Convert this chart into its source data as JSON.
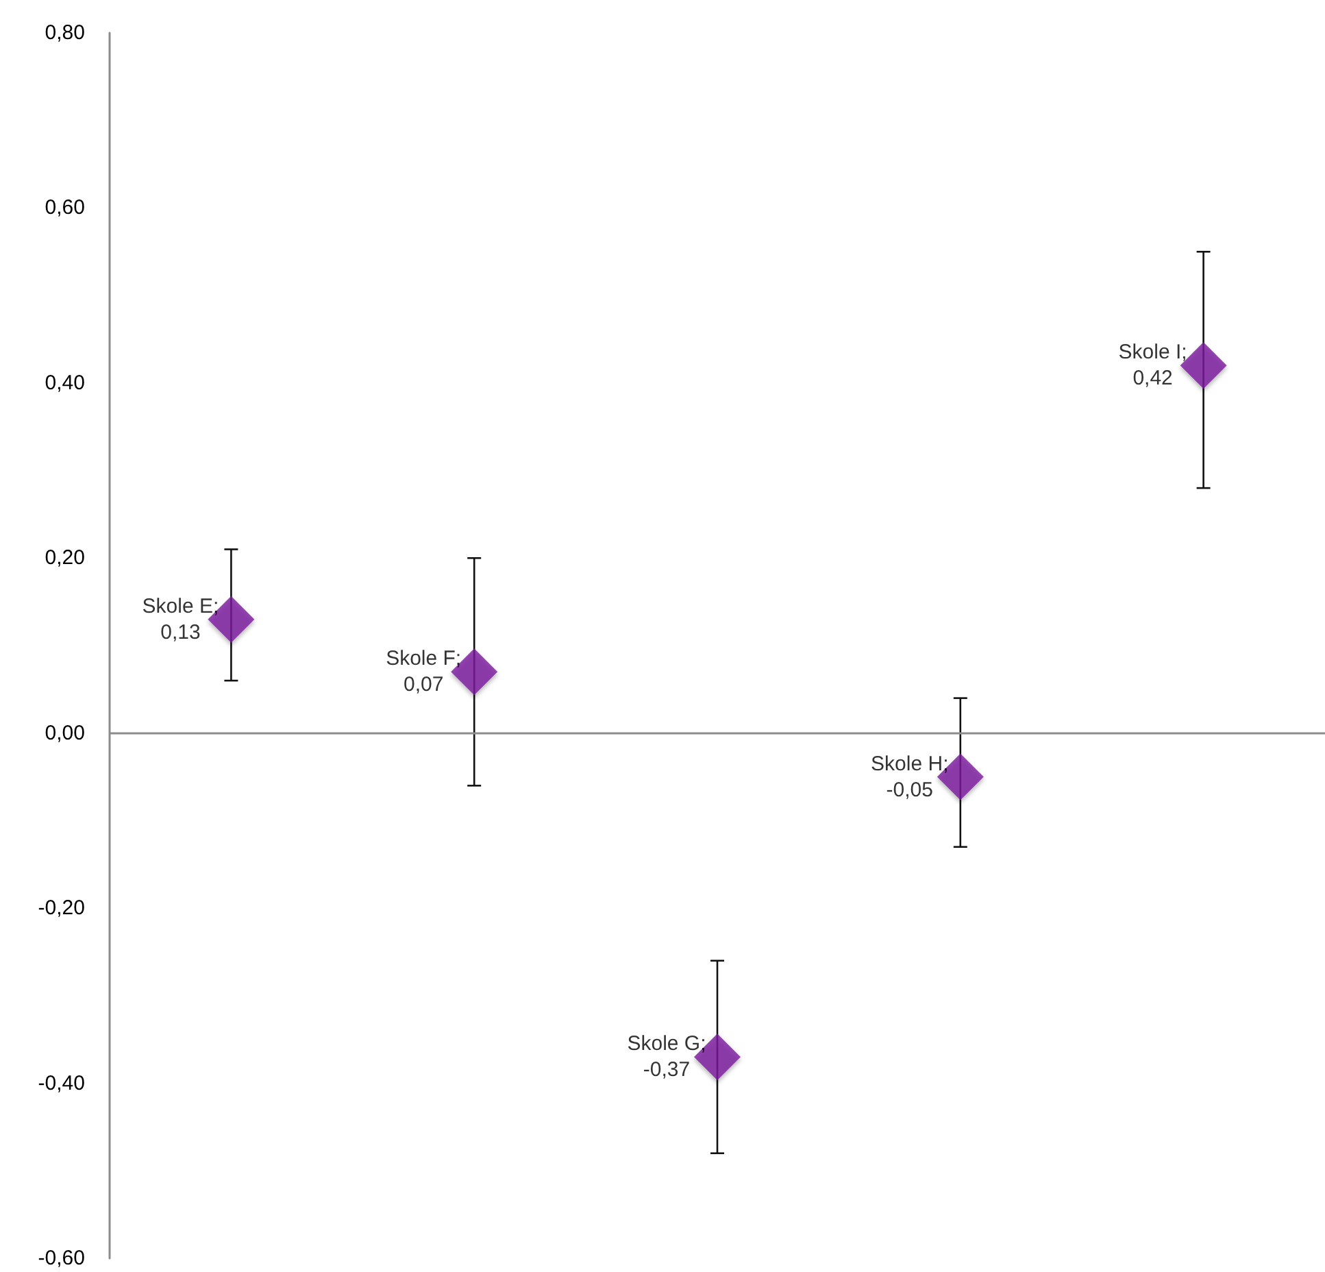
{
  "chart_data": {
    "type": "scatter",
    "categories": [
      null,
      null,
      null,
      null,
      null
    ],
    "values": [
      0.13,
      0.07,
      -0.37,
      -0.05,
      0.42
    ],
    "errors": [
      [
        0.06,
        0.21
      ],
      [
        -0.06,
        0.2
      ],
      [
        -0.48,
        -0.26
      ],
      [
        -0.13,
        0.04
      ],
      [
        0.28,
        0.55
      ]
    ],
    "value_labels": [
      "Skole E;\n0,13",
      "Skole F;\n0,07",
      "Skole G;\n-0,37",
      "Skole H;\n-0,05",
      "Skole I;\n0,42"
    ],
    "color": "#7b1c9e",
    "marker": "diamond",
    "ref_lines": [
      {
        "axis": "y",
        "value": 0,
        "label": null,
        "color": "#8c8c8c"
      }
    ],
    "ylim": [
      -0.6,
      0.8
    ],
    "yticks": [
      {
        "value": -0.6,
        "label": "-0,60"
      },
      {
        "value": -0.4,
        "label": "-0,40"
      },
      {
        "value": -0.2,
        "label": "-0,20"
      },
      {
        "value": 0,
        "label": "0,00"
      },
      {
        "value": 0.2,
        "label": "0,20"
      },
      {
        "value": 0.4,
        "label": "0,40"
      },
      {
        "value": 0.6,
        "label": "0,60"
      },
      {
        "value": 0.8,
        "label": "0,80"
      }
    ]
  }
}
